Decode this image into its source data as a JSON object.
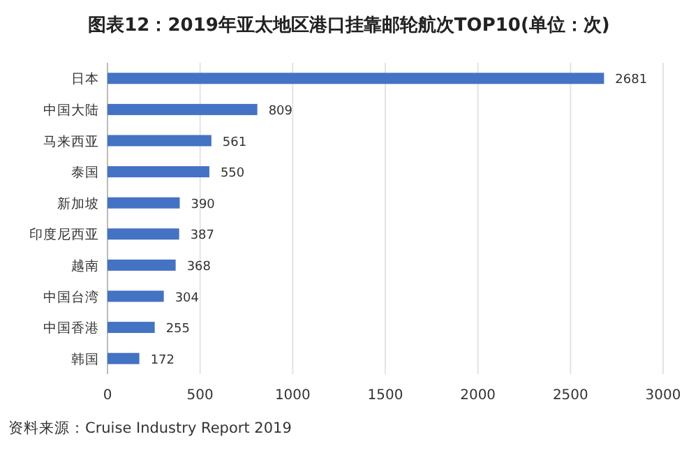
{
  "chart_data": {
    "type": "bar",
    "orientation": "horizontal",
    "title": "图表12：2019年亚太地区港口挂靠邮轮航次TOP10(单位：次)",
    "categories": [
      "日本",
      "中国大陆",
      "马来西亚",
      "泰国",
      "新加坡",
      "印度尼西亚",
      "越南",
      "中国台湾",
      "中国香港",
      "韩国"
    ],
    "values": [
      2681,
      809,
      561,
      550,
      390,
      387,
      368,
      304,
      255,
      172
    ],
    "color": "#4472c4",
    "xlim": [
      0,
      3000
    ],
    "xticks": [
      0,
      500,
      1000,
      1500,
      2000,
      2500,
      3000
    ],
    "grid": "x",
    "data_labels": true,
    "annotations": [
      "资料来源：Cruise Industry Report 2019"
    ]
  }
}
